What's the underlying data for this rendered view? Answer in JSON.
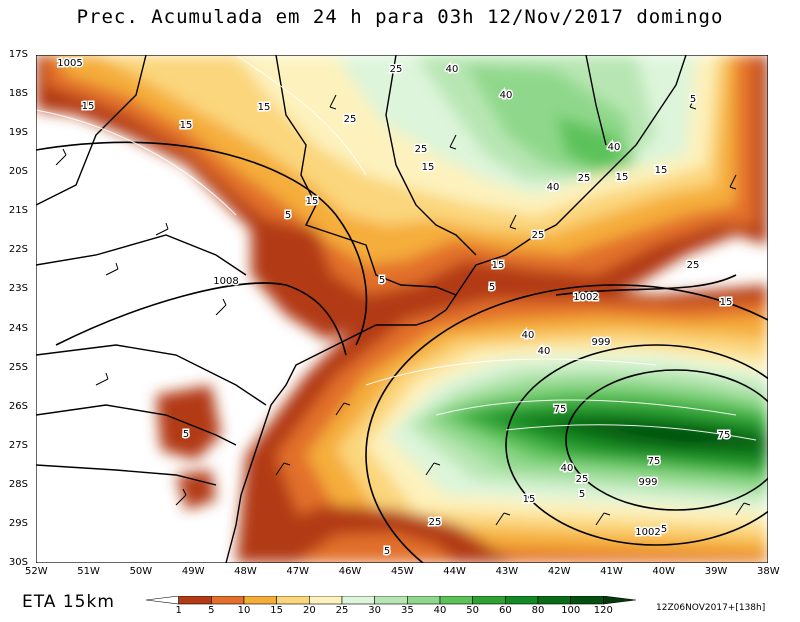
{
  "title": "Prec. Acumulada em 24 h para 03h 12/Nov/2017 domingo",
  "model_label": "ETA 15km",
  "run_label": "12Z06NOV2017+[138h]",
  "lat_ticks": [
    "17S",
    "18S",
    "19S",
    "20S",
    "21S",
    "22S",
    "23S",
    "24S",
    "25S",
    "26S",
    "27S",
    "28S",
    "29S",
    "30S"
  ],
  "lon_ticks": [
    "52W",
    "51W",
    "50W",
    "49W",
    "48W",
    "47W",
    "46W",
    "45W",
    "44W",
    "43W",
    "42W",
    "41W",
    "40W",
    "39W",
    "38W"
  ],
  "colorbar": {
    "labels": [
      "1",
      "5",
      "10",
      "15",
      "20",
      "25",
      "30",
      "35",
      "40",
      "50",
      "60",
      "80",
      "100",
      "120"
    ],
    "colors": [
      "#ffffff",
      "#b23a14",
      "#e2702a",
      "#f5ad3a",
      "#fbd67b",
      "#fdf2bd",
      "#ddf5da",
      "#b8e6b3",
      "#8fd88b",
      "#5dc25a",
      "#2fa134",
      "#138a24",
      "#0a6c18",
      "#054f10",
      "#033a0b"
    ]
  },
  "pressure_labels": [
    "1005",
    "1008",
    "1002",
    "999",
    "999",
    "1002"
  ],
  "precip_labels": [
    "15",
    "15",
    "25",
    "25",
    "40",
    "40",
    "15",
    "15",
    "25",
    "40",
    "40",
    "15",
    "5",
    "15",
    "5",
    "25",
    "15",
    "5",
    "15",
    "25",
    "40",
    "40",
    "75",
    "75",
    "75",
    "40",
    "25",
    "5",
    "15",
    "25",
    "5",
    "5",
    "15",
    "5",
    "25",
    "5"
  ]
}
